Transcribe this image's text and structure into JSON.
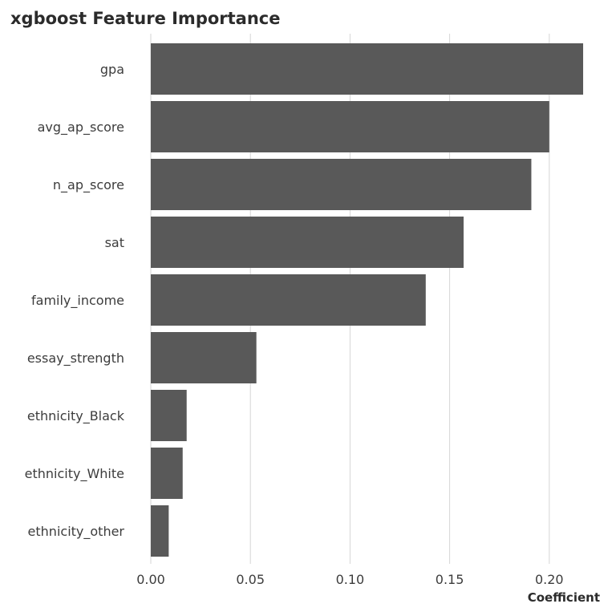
{
  "chart_data": {
    "type": "bar",
    "orientation": "horizontal",
    "title": "xgboost Feature Importance",
    "xlabel": "Coefficient",
    "ylabel": "",
    "categories": [
      "gpa",
      "avg_ap_score",
      "n_ap_score",
      "sat",
      "family_income",
      "essay_strength",
      "ethnicity_Black",
      "ethnicity_White",
      "ethnicity_other"
    ],
    "values": [
      0.217,
      0.2,
      0.191,
      0.157,
      0.138,
      0.053,
      0.018,
      0.016,
      0.009
    ],
    "xlim": [
      0,
      0.22
    ],
    "xticks": [
      "0.00",
      "0.05",
      "0.10",
      "0.15",
      "0.20"
    ],
    "grid": "vertical",
    "legend": "none",
    "bar_color": "#595959"
  }
}
